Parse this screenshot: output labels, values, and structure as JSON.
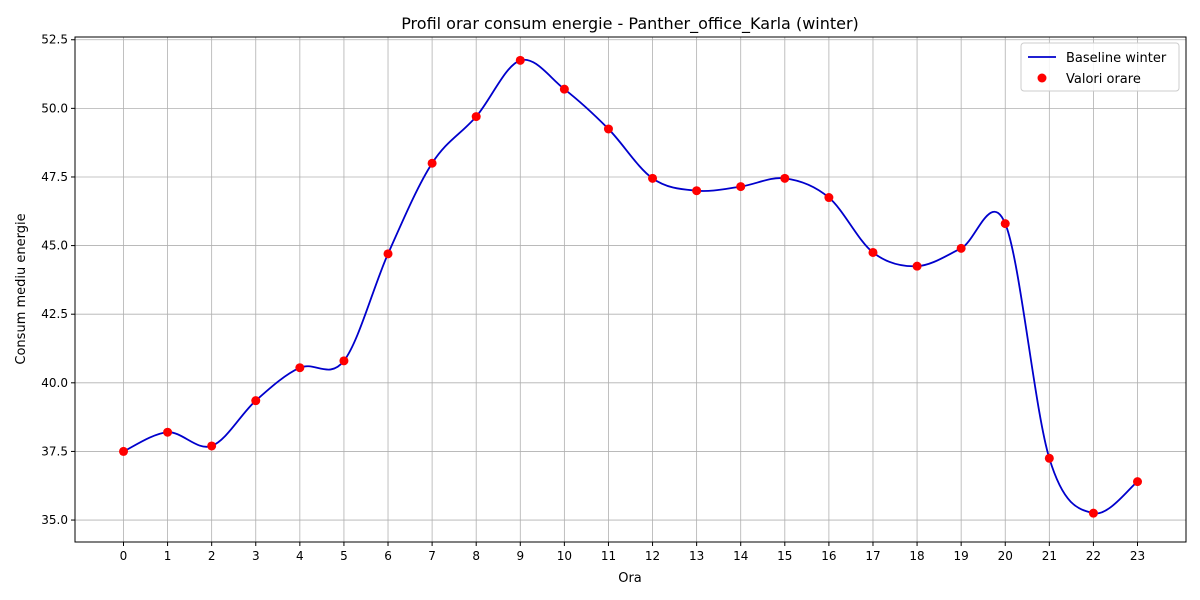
{
  "chart_data": {
    "type": "line",
    "title": "Profil orar consum energie - Panther_office_Karla (winter)",
    "xlabel": "Ora",
    "ylabel": "Consum mediu energie",
    "x": [
      0,
      1,
      2,
      3,
      4,
      5,
      6,
      7,
      8,
      9,
      10,
      11,
      12,
      13,
      14,
      15,
      16,
      17,
      18,
      19,
      20,
      21,
      22,
      23
    ],
    "x_ticks": [
      "0",
      "1",
      "2",
      "3",
      "4",
      "5",
      "6",
      "7",
      "8",
      "9",
      "10",
      "11",
      "12",
      "13",
      "14",
      "15",
      "16",
      "17",
      "18",
      "19",
      "20",
      "21",
      "22",
      "23"
    ],
    "y_ticks": [
      "35.0",
      "37.5",
      "40.0",
      "42.5",
      "45.0",
      "47.5",
      "50.0",
      "52.5"
    ],
    "xlim": [
      -1.1,
      24.1
    ],
    "ylim": [
      34.2,
      52.6
    ],
    "grid": true,
    "legend_position": "top-right",
    "series": [
      {
        "name": "Baseline winter",
        "kind": "line",
        "color": "#0000cc",
        "values": [
          37.5,
          38.2,
          37.7,
          39.35,
          40.55,
          40.8,
          44.7,
          48.0,
          49.7,
          51.75,
          50.7,
          49.25,
          47.45,
          47.0,
          47.15,
          47.45,
          46.75,
          44.75,
          44.25,
          44.9,
          45.8,
          37.25,
          35.25,
          36.4
        ]
      },
      {
        "name": "Valori orare",
        "kind": "scatter",
        "color": "#ff0000",
        "values": [
          37.5,
          38.2,
          37.7,
          39.35,
          40.55,
          40.8,
          44.7,
          48.0,
          49.7,
          51.75,
          50.7,
          49.25,
          47.45,
          47.0,
          47.15,
          47.45,
          46.75,
          44.75,
          44.25,
          44.9,
          45.8,
          37.25,
          35.25,
          36.4
        ]
      }
    ]
  }
}
